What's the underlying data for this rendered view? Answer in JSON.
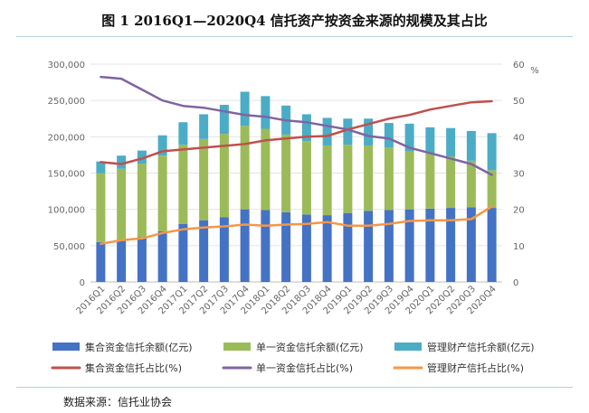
{
  "title": "图 1    2016Q1—2020Q4 信托资产按资金来源的规模及其占比",
  "source": "数据来源：信托业协会",
  "colors": {
    "blue": "#4472C4",
    "green": "#9BBB59",
    "teal": "#4BACC6",
    "red": "#C0504D",
    "purple": "#8064A2",
    "orange": "#F79646"
  },
  "chart_data": {
    "type": "bar",
    "stacked": true,
    "categories": [
      "2016Q1",
      "2016Q2",
      "2016Q3",
      "2016Q4",
      "2017Q1",
      "2017Q2",
      "2017Q3",
      "2017Q4",
      "2018Q1",
      "2018Q2",
      "2018Q3",
      "2018Q4",
      "2019Q1",
      "2019Q2",
      "2019Q3",
      "2019Q4",
      "2020Q1",
      "2020Q2",
      "2020Q3",
      "2020Q4"
    ],
    "ylim": [
      0,
      300000
    ],
    "yticks": [
      "0",
      "50,000",
      "100,000",
      "150,000",
      "200,000",
      "250,000",
      "300,000"
    ],
    "ylim_right": [
      0,
      60
    ],
    "yticks_right": [
      "0",
      "10",
      "20",
      "30",
      "40",
      "50",
      "60"
    ],
    "ylabel_right": "%",
    "series": [
      {
        "name": "集合资金信托余额(亿元)",
        "kind": "bar",
        "color_key": "blue",
        "values": [
          55000,
          58000,
          62000,
          70000,
          80000,
          85000,
          89000,
          100000,
          99000,
          96000,
          93000,
          92000,
          95000,
          98000,
          99000,
          100000,
          101000,
          102000,
          103000,
          102000
        ]
      },
      {
        "name": "单一资金信托余额(亿元)",
        "kind": "bar",
        "color_key": "green",
        "values": [
          95000,
          98000,
          101000,
          104000,
          109000,
          112000,
          115000,
          115000,
          112000,
          107000,
          101000,
          96000,
          94000,
          90000,
          86000,
          80000,
          76000,
          71000,
          64000,
          52000
        ]
      },
      {
        "name": "管理财产信托余额(亿元)",
        "kind": "bar",
        "color_key": "teal",
        "values": [
          16000,
          18000,
          18000,
          28000,
          31000,
          34000,
          40000,
          47000,
          45000,
          40000,
          37000,
          38000,
          36000,
          37000,
          34000,
          38000,
          36000,
          39000,
          41000,
          51000
        ]
      },
      {
        "name": "集合资金信托占比(%)",
        "kind": "line",
        "color_key": "red",
        "values": [
          33,
          32.5,
          34,
          36,
          36.5,
          37,
          37.5,
          38,
          39,
          39.5,
          40,
          40.2,
          42,
          43.5,
          45,
          46,
          47.5,
          48.5,
          49.5,
          49.8
        ]
      },
      {
        "name": "单一资金信托占比(%)",
        "kind": "line",
        "color_key": "purple",
        "values": [
          56.5,
          56,
          53,
          50,
          48.5,
          48,
          47,
          46,
          45.5,
          44.5,
          44,
          43,
          42,
          40.2,
          39.5,
          37,
          35.5,
          34,
          32.5,
          29.5
        ]
      },
      {
        "name": "管理财产信托占比(%)",
        "kind": "line",
        "color_key": "orange",
        "values": [
          10.5,
          11.5,
          12,
          13.5,
          14.5,
          15,
          15.3,
          15.8,
          15.5,
          15.8,
          16,
          16.5,
          15.5,
          15.5,
          16,
          16.8,
          17,
          17,
          17.3,
          20.8
        ]
      }
    ],
    "legend_position": "bottom"
  }
}
